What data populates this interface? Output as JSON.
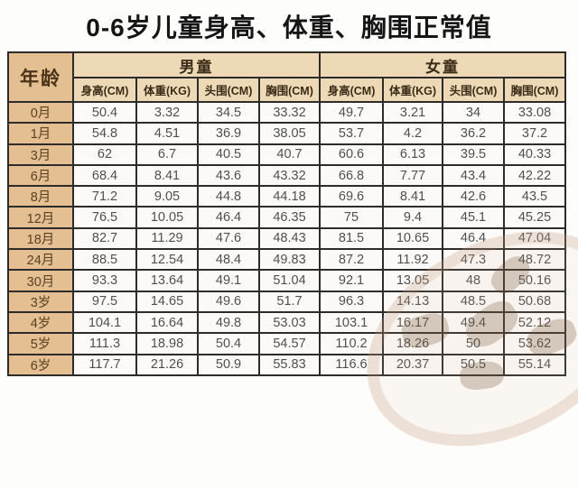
{
  "colors": {
    "page_bg": "#fdfdfb",
    "table_border": "#2e2c2a",
    "header_band_bg": "#edd9b6",
    "age_column_bg": "#e3bf92",
    "data_cell_bg": "#fbfaf9",
    "header_text": "#3a2b18",
    "data_text": "#4f4f4f",
    "title_text": "#151515"
  },
  "watermark": {
    "name": "faded-seal-stamp"
  },
  "chart_data": {
    "type": "table",
    "title": "0-6岁儿童身高、体重、胸围正常值",
    "corner_header": "年龄",
    "group_headers": [
      "男童",
      "女童"
    ],
    "column_headers": [
      "身高(CM)",
      "体重(KG)",
      "头围(CM)",
      "胸围(CM)",
      "身高(CM)",
      "体重(KG)",
      "头围(CM)",
      "胸围(CM)"
    ],
    "rows": [
      {
        "age": "0月",
        "boy": [
          50.4,
          3.32,
          34.5,
          33.32
        ],
        "girl": [
          49.7,
          3.21,
          34,
          33.08
        ]
      },
      {
        "age": "1月",
        "boy": [
          54.8,
          4.51,
          36.9,
          38.05
        ],
        "girl": [
          53.7,
          4.2,
          36.2,
          37.2
        ]
      },
      {
        "age": "3月",
        "boy": [
          62,
          6.7,
          40.5,
          40.7
        ],
        "girl": [
          60.6,
          6.13,
          39.5,
          40.33
        ]
      },
      {
        "age": "6月",
        "boy": [
          68.4,
          8.41,
          43.6,
          43.32
        ],
        "girl": [
          66.8,
          7.77,
          43.4,
          42.22
        ]
      },
      {
        "age": "8月",
        "boy": [
          71.2,
          9.05,
          44.8,
          44.18
        ],
        "girl": [
          69.6,
          8.41,
          42.6,
          43.5
        ]
      },
      {
        "age": "12月",
        "boy": [
          76.5,
          10.05,
          46.4,
          46.35
        ],
        "girl": [
          75,
          9.4,
          45.1,
          45.25
        ]
      },
      {
        "age": "18月",
        "boy": [
          82.7,
          11.29,
          47.6,
          48.43
        ],
        "girl": [
          81.5,
          10.65,
          46.4,
          47.04
        ]
      },
      {
        "age": "24月",
        "boy": [
          88.5,
          12.54,
          48.4,
          49.83
        ],
        "girl": [
          87.2,
          11.92,
          47.3,
          48.72
        ]
      },
      {
        "age": "30月",
        "boy": [
          93.3,
          13.64,
          49.1,
          51.04
        ],
        "girl": [
          92.1,
          13.05,
          48,
          50.16
        ]
      },
      {
        "age": "3岁",
        "boy": [
          97.5,
          14.65,
          49.6,
          51.7
        ],
        "girl": [
          96.3,
          14.13,
          48.5,
          50.68
        ]
      },
      {
        "age": "4岁",
        "boy": [
          104.1,
          16.64,
          49.8,
          53.03
        ],
        "girl": [
          103.1,
          16.17,
          49.4,
          52.12
        ]
      },
      {
        "age": "5岁",
        "boy": [
          111.3,
          18.98,
          50.4,
          54.57
        ],
        "girl": [
          110.2,
          18.26,
          50,
          53.62
        ]
      },
      {
        "age": "6岁",
        "boy": [
          117.7,
          21.26,
          50.9,
          55.83
        ],
        "girl": [
          116.6,
          20.37,
          50.5,
          55.14
        ]
      }
    ]
  }
}
